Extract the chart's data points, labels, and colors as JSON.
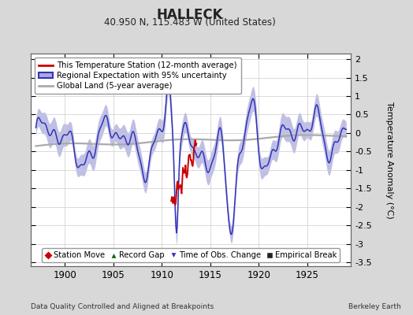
{
  "title": "HALLECK",
  "subtitle": "40.950 N, 115.483 W (United States)",
  "ylabel": "Temperature Anomaly (°C)",
  "xlabel_left": "Data Quality Controlled and Aligned at Breakpoints",
  "xlabel_right": "Berkeley Earth",
  "xlim": [
    1896.5,
    1929.5
  ],
  "ylim": [
    -3.6,
    2.15
  ],
  "yticks": [
    -3.5,
    -3.0,
    -2.5,
    -2.0,
    -1.5,
    -1.0,
    -0.5,
    0.0,
    0.5,
    1.0,
    1.5,
    2.0
  ],
  "xticks": [
    1900,
    1905,
    1910,
    1915,
    1920,
    1925
  ],
  "bg_color": "#d8d8d8",
  "plot_bg_color": "#ffffff",
  "regional_color": "#3333bb",
  "regional_band_color": "#aaaadd",
  "station_color": "#cc0000",
  "global_color": "#aaaaaa",
  "legend1_items": [
    {
      "label": "This Temperature Station (12-month average)",
      "color": "#cc0000"
    },
    {
      "label": "Regional Expectation with 95% uncertainty",
      "color": "#3333bb"
    },
    {
      "label": "Global Land (5-year average)",
      "color": "#aaaaaa"
    }
  ],
  "legend2_items": [
    {
      "label": "Station Move",
      "marker": "D",
      "color": "#cc0000"
    },
    {
      "label": "Record Gap",
      "marker": "^",
      "color": "#006600"
    },
    {
      "label": "Time of Obs. Change",
      "marker": "v",
      "color": "#3333bb"
    },
    {
      "label": "Empirical Break",
      "marker": "s",
      "color": "#222222"
    }
  ]
}
